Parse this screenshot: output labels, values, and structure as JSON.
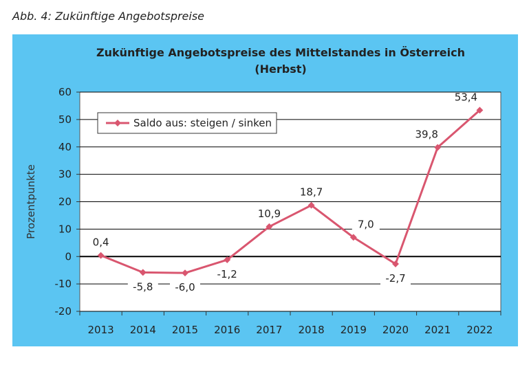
{
  "caption": "Abb. 4: Zukünftige Angebotspreise",
  "colors": {
    "background": "#5bc5f2",
    "plot": "#ffffff",
    "line": "#d9566f",
    "grid": "#000000"
  },
  "chart_data": {
    "type": "line",
    "title": "Zukünftige Angebotspreise des Mittelstandes in Österreich",
    "subtitle": "(Herbst)",
    "ylabel": "Prozentpunkte",
    "xlabel": "",
    "ylim": [
      -20,
      60
    ],
    "yticks": [
      "60",
      "50",
      "40",
      "30",
      "20",
      "10",
      "0",
      "-10",
      "-20"
    ],
    "categories": [
      "2013",
      "2014",
      "2015",
      "2016",
      "2017",
      "2018",
      "2019",
      "2020",
      "2021",
      "2022"
    ],
    "series": [
      {
        "name": "Saldo aus: steigen / sinken",
        "values": [
          0.4,
          -5.8,
          -6.0,
          -1.2,
          10.9,
          18.7,
          7.0,
          -2.7,
          39.8,
          53.4
        ],
        "labels": [
          "0,4",
          "-5,8",
          "-6,0",
          "-1,2",
          "10,9",
          "18,7",
          "7,0",
          "-2,7",
          "39,8",
          "53,4"
        ]
      }
    ],
    "grid": true,
    "legend_position": "top-left"
  }
}
